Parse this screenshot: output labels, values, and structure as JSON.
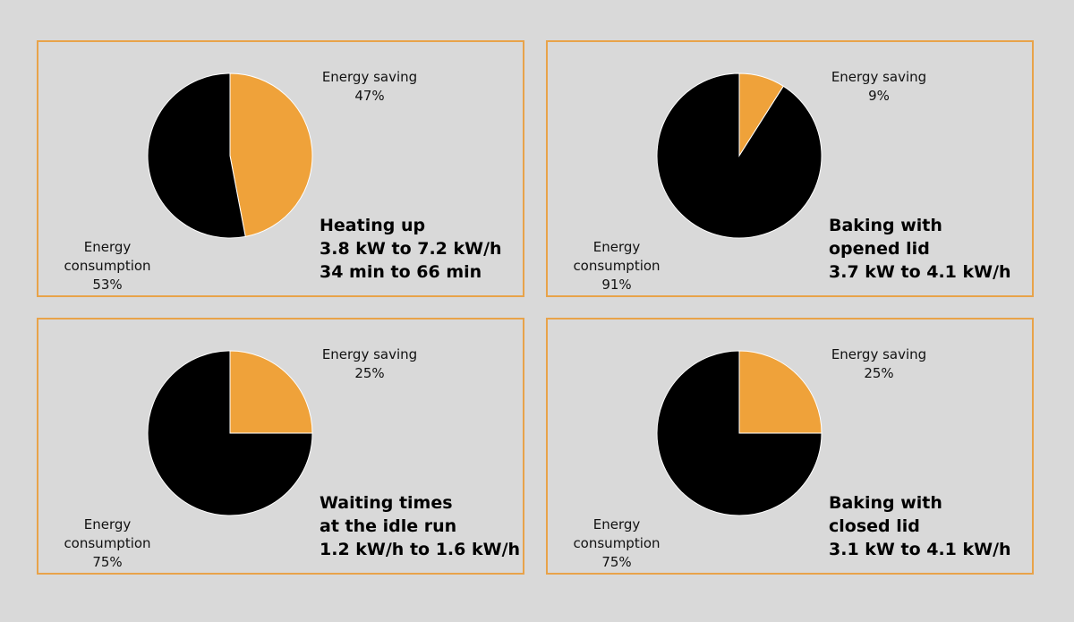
{
  "colors": {
    "saving": "#efa23a",
    "consumption": "#000000",
    "border": "#e8a34a",
    "background": "#d9d9d9"
  },
  "chart_data": [
    {
      "type": "pie",
      "caption": [
        "Heating up",
        "3.8 kW to 7.2 kW/h",
        "34 min to 66 min"
      ],
      "slices": [
        {
          "label": "Energy saving",
          "value": 47,
          "display": "47%"
        },
        {
          "label": "Energy consumption",
          "value": 53,
          "display": "53%"
        }
      ]
    },
    {
      "type": "pie",
      "caption": [
        "Baking with",
        "opened lid",
        "3.7 kW to 4.1 kW/h"
      ],
      "slices": [
        {
          "label": "Energy saving",
          "value": 9,
          "display": "9%"
        },
        {
          "label": "Energy consumption",
          "value": 91,
          "display": "91%"
        }
      ]
    },
    {
      "type": "pie",
      "caption": [
        "Waiting times",
        "at the idle run",
        "1.2 kW/h to 1.6 kW/h"
      ],
      "slices": [
        {
          "label": "Energy saving",
          "value": 25,
          "display": "25%"
        },
        {
          "label": "Energy consumption",
          "value": 75,
          "display": "75%"
        }
      ]
    },
    {
      "type": "pie",
      "caption": [
        "Baking with",
        "closed lid",
        "3.1 kW to 4.1 kW/h"
      ],
      "slices": [
        {
          "label": "Energy saving",
          "value": 25,
          "display": "25%"
        },
        {
          "label": "Energy consumption",
          "value": 75,
          "display": "75%"
        }
      ]
    }
  ]
}
